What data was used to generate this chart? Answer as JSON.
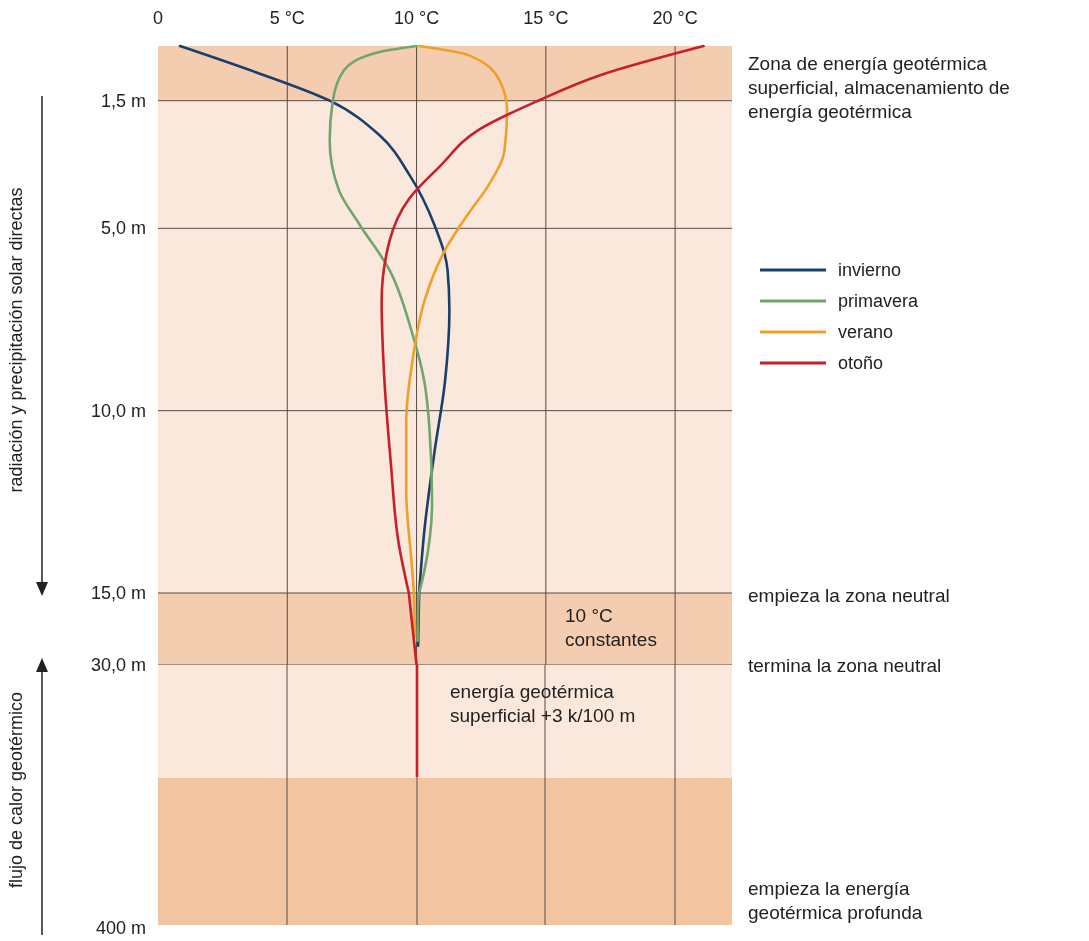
{
  "chart_data": [
    {
      "type": "line",
      "xlim": [
        0,
        22.2
      ],
      "xticks": [
        0,
        {
          "value": 5,
          "label": "5 °C"
        },
        {
          "value": 10,
          "label": "10 °C"
        },
        {
          "value": 15,
          "label": "15 °C"
        },
        {
          "value": 20,
          "label": "20 °C"
        }
      ],
      "ylim": [
        15,
        0
      ],
      "yticks": [
        {
          "value": 1.5,
          "label": "1,5 m"
        },
        {
          "value": 5,
          "label": "5,0 m"
        },
        {
          "value": 10,
          "label": "10,0 m"
        }
      ],
      "grid": true,
      "legend": "right",
      "bands": [
        {
          "axis": "y",
          "from": 0,
          "to": 1.5,
          "color": "#f4cdb0"
        },
        {
          "axis": "y",
          "from": 1.5,
          "to": 15,
          "color": "#fbe8dc"
        }
      ],
      "series": [
        {
          "name": "invierno",
          "color": "#1b3f6b",
          "x": [
            0.85,
            3.55,
            6.64,
            8.57,
            9.73,
            10.7,
            11.2,
            11.27,
            11.1,
            10.7,
            10.3,
            10.1
          ],
          "values": [
            0,
            0.66,
            1.5,
            2.45,
            3.54,
            4.92,
            6.15,
            7.25,
            9.2,
            11.1,
            13.3,
            15
          ]
        },
        {
          "name": "primavera",
          "color": "#72a56b",
          "x": [
            10,
            8.6,
            7.2,
            6.76,
            6.64,
            7.0,
            7.8,
            8.96,
            9.8,
            10.3,
            10.5,
            10.6,
            10.3,
            10.1
          ],
          "values": [
            0,
            0.16,
            0.66,
            1.5,
            2.6,
            3.96,
            4.9,
            6.15,
            7.8,
            9.2,
            10.5,
            12.5,
            14.4,
            15
          ]
        },
        {
          "name": "verano",
          "color": "#eea02a",
          "x": [
            10.1,
            12.0,
            13.2,
            13.5,
            13.4,
            12.8,
            12.0,
            11.1,
            10.3,
            9.85,
            9.6,
            9.6,
            9.8,
            9.9
          ],
          "values": [
            0,
            0.25,
            0.93,
            1.76,
            2.86,
            3.8,
            4.6,
            5.6,
            7.0,
            8.6,
            10.3,
            12.2,
            14.1,
            15
          ]
        },
        {
          "name": "otoño",
          "color": "#c7202b",
          "x": [
            21.1,
            17.1,
            14.7,
            12.4,
            10.9,
            9.7,
            8.96,
            8.65,
            8.76,
            9.0,
            9.3,
            9.7
          ],
          "values": [
            0,
            0.8,
            1.5,
            2.3,
            3.3,
            4.2,
            5.33,
            7.0,
            9.2,
            11.4,
            13.6,
            15
          ]
        }
      ],
      "annotations": [
        "Zona de energía geotérmica superficial, almacenamiento de energía geotérmica",
        "radiación y precipitación solar directas"
      ]
    },
    {
      "type": "line",
      "xlim": [
        0,
        22.2
      ],
      "xticks": [
        0,
        5,
        10,
        15,
        20
      ],
      "tick_labels": "y",
      "ylim": [
        30,
        15
      ],
      "yticks": [
        {
          "value": 15,
          "label": "15,0 m"
        },
        {
          "value": 30,
          "label": "30,0 m"
        }
      ],
      "grid": true,
      "bands": [
        {
          "axis": "y",
          "from": 15,
          "to": 30,
          "color": "#f4cdb0"
        }
      ],
      "series": [
        {
          "color": "#1b3f6b",
          "x": [
            10.1,
            10.06
          ],
          "values": [
            15,
            26
          ]
        },
        {
          "color": "#72a56b",
          "x": [
            10.1,
            10.08,
            10.04
          ],
          "values": [
            15,
            15.2,
            25
          ]
        },
        {
          "color": "#eea02a",
          "x": [
            9.9,
            9.94
          ],
          "values": [
            15,
            24
          ]
        },
        {
          "color": "#c7202b",
          "x": [
            9.7,
            10
          ],
          "values": [
            15,
            30
          ]
        }
      ],
      "annotations": [
        "10 °C constantes",
        "empieza la zona neutral",
        "termina la zona neutral"
      ]
    },
    {
      "type": "other",
      "annotations": [
        "energía geotérmica superficial +3 k/100 m",
        "empieza la energía geotérmica profunda",
        "flujo de calor geotérmico",
        "400 m"
      ]
    }
  ]
}
